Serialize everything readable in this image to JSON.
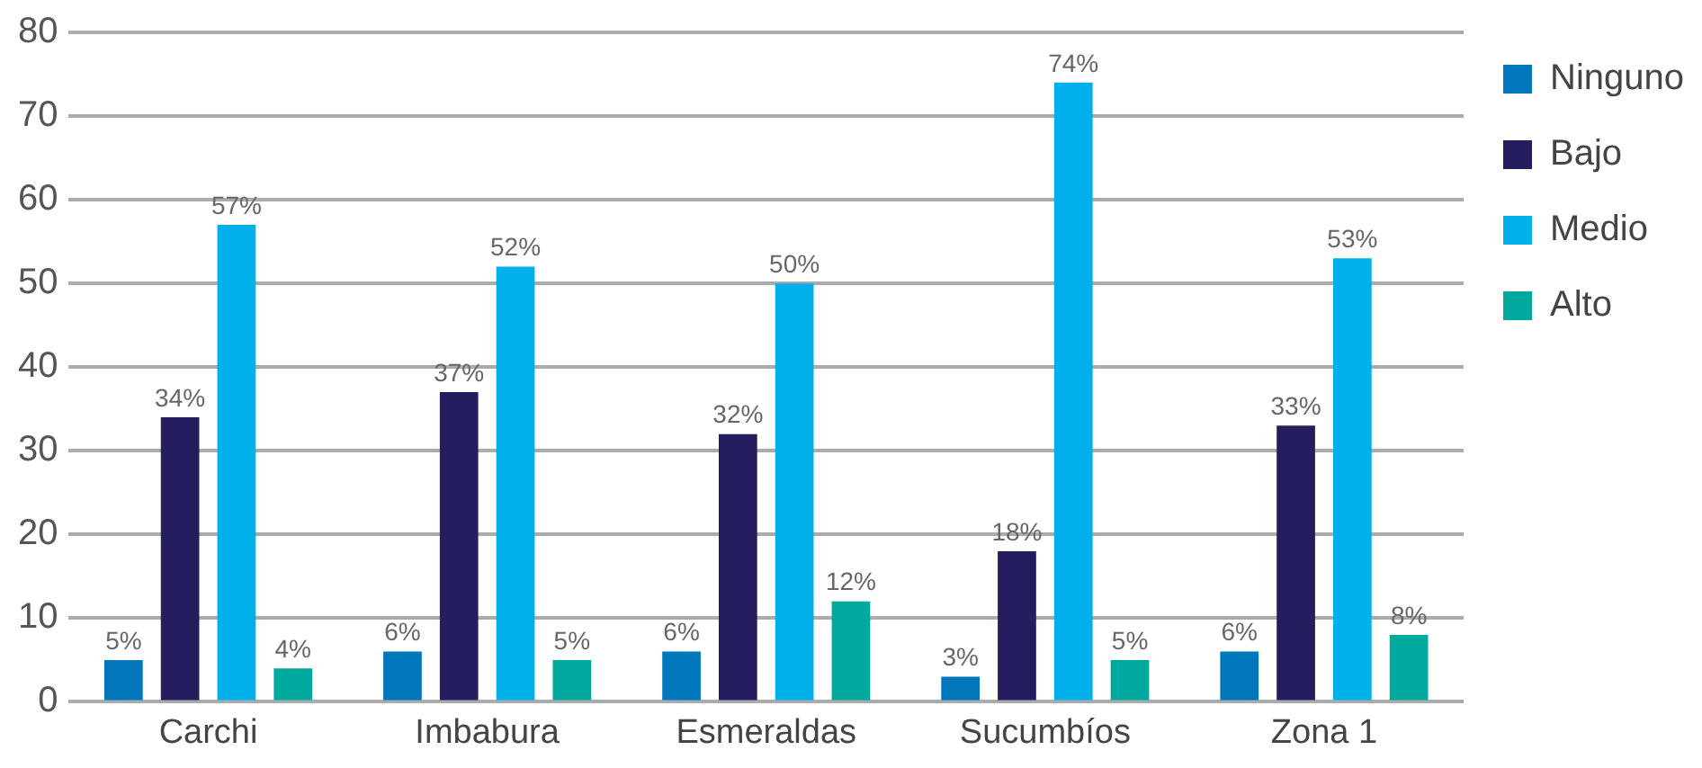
{
  "chart_data": {
    "type": "bar",
    "categories": [
      "Carchi",
      "Imbabura",
      "Esmeraldas",
      "Sucumbíos",
      "Zona 1"
    ],
    "series": [
      {
        "name": "Ninguno",
        "color": "#0077bd",
        "values": [
          5,
          6,
          6,
          3,
          6
        ],
        "value_labels": [
          "5%",
          "6%",
          "6%",
          "3%",
          "6%"
        ]
      },
      {
        "name": "Bajo",
        "color": "#241d5e",
        "values": [
          34,
          37,
          32,
          18,
          33
        ],
        "value_labels": [
          "34%",
          "37%",
          "32%",
          "18%",
          "33%"
        ]
      },
      {
        "name": "Medio",
        "color": "#00b0ea",
        "values": [
          57,
          52,
          50,
          74,
          53
        ],
        "value_labels": [
          "57%",
          "52%",
          "50%",
          "74%",
          "53%"
        ]
      },
      {
        "name": "Alto",
        "color": "#00a99d",
        "values": [
          4,
          5,
          12,
          5,
          8
        ],
        "value_labels": [
          "4%",
          "5%",
          "12%",
          "5%",
          "8%"
        ]
      }
    ],
    "ylim": [
      0,
      80
    ],
    "yticks": [
      0,
      10,
      20,
      30,
      40,
      50,
      60,
      70,
      80
    ],
    "grid": "y",
    "legend": "top right"
  }
}
